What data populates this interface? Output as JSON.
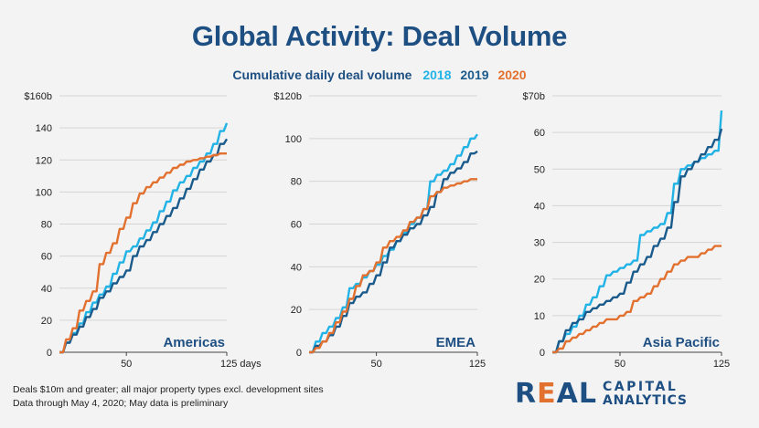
{
  "title": "Global Activity: Deal Volume",
  "subtitle": {
    "text": "Cumulative daily deal volume",
    "legend": [
      {
        "label": "2018",
        "color": "#22b3e6"
      },
      {
        "label": "2019",
        "color": "#1a5b8c"
      },
      {
        "label": "2020",
        "color": "#e2702e"
      }
    ]
  },
  "footnote": {
    "line1": "Deals $10m and greater; all major property types excl. development sites",
    "line2": "Data through May 4, 2020; May data is preliminary"
  },
  "logo": {
    "word_prefix": "R",
    "word_highlight": "E",
    "word_suffix": "AL",
    "line1": "CAPITAL",
    "line2": "ANALYTICS"
  },
  "chart_data": [
    {
      "type": "line",
      "region": "Americas",
      "xlabel": "days",
      "xlim": [
        0,
        125
      ],
      "xticks": [
        50,
        125
      ],
      "xtick_labels": [
        "50",
        "125 days"
      ],
      "ylim": [
        0,
        160
      ],
      "yticks": [
        0,
        20,
        40,
        60,
        80,
        100,
        120,
        140,
        160
      ],
      "ytick_labels": [
        "0",
        "20",
        "40",
        "60",
        "80",
        "100",
        "120",
        "140",
        "$160b"
      ],
      "series": [
        {
          "name": "2018",
          "color": "#22b3e6",
          "x": [
            0,
            5,
            10,
            15,
            20,
            25,
            30,
            35,
            40,
            45,
            50,
            55,
            60,
            65,
            70,
            75,
            80,
            85,
            90,
            95,
            100,
            105,
            110,
            115,
            120,
            125
          ],
          "y": [
            0,
            6,
            12,
            18,
            25,
            31,
            36,
            41,
            49,
            56,
            63,
            66,
            71,
            76,
            81,
            88,
            94,
            101,
            106,
            110,
            115,
            119,
            124,
            130,
            138,
            143
          ]
        },
        {
          "name": "2019",
          "color": "#1a5b8c",
          "x": [
            0,
            5,
            10,
            15,
            20,
            25,
            30,
            35,
            40,
            45,
            50,
            55,
            60,
            65,
            70,
            75,
            80,
            85,
            90,
            95,
            100,
            105,
            110,
            115,
            120,
            125
          ],
          "y": [
            0,
            6,
            11,
            16,
            22,
            27,
            34,
            38,
            43,
            47,
            51,
            60,
            66,
            70,
            75,
            80,
            85,
            90,
            96,
            102,
            108,
            114,
            119,
            123,
            130,
            133
          ]
        },
        {
          "name": "2020",
          "color": "#e2702e",
          "x": [
            0,
            5,
            10,
            15,
            20,
            25,
            30,
            35,
            40,
            45,
            50,
            55,
            60,
            65,
            70,
            75,
            80,
            85,
            90,
            95,
            100,
            105,
            110,
            115,
            120,
            125
          ],
          "y": [
            0,
            8,
            15,
            26,
            32,
            38,
            55,
            62,
            68,
            77,
            84,
            93,
            99,
            103,
            106,
            109,
            112,
            115,
            117,
            119,
            120,
            121,
            122,
            123,
            124,
            124
          ]
        }
      ]
    },
    {
      "type": "line",
      "region": "EMEA",
      "xlabel": "",
      "xlim": [
        0,
        125
      ],
      "xticks": [
        50,
        125
      ],
      "xtick_labels": [
        "50",
        "125"
      ],
      "ylim": [
        0,
        120
      ],
      "yticks": [
        0,
        20,
        40,
        60,
        80,
        100,
        120
      ],
      "ytick_labels": [
        "0",
        "20",
        "40",
        "60",
        "80",
        "100",
        "$120b"
      ],
      "series": [
        {
          "name": "2018",
          "color": "#22b3e6",
          "x": [
            0,
            5,
            10,
            15,
            20,
            25,
            30,
            35,
            40,
            45,
            50,
            55,
            60,
            65,
            70,
            75,
            80,
            85,
            90,
            95,
            100,
            105,
            110,
            115,
            120,
            125
          ],
          "y": [
            0,
            5,
            9,
            12,
            16,
            21,
            30,
            32,
            35,
            38,
            41,
            45,
            48,
            52,
            56,
            60,
            63,
            67,
            80,
            83,
            85,
            88,
            92,
            96,
            100,
            102
          ]
        },
        {
          "name": "2019",
          "color": "#1a5b8c",
          "x": [
            0,
            5,
            10,
            15,
            20,
            25,
            30,
            35,
            40,
            45,
            50,
            55,
            60,
            65,
            70,
            75,
            80,
            85,
            90,
            95,
            100,
            105,
            110,
            115,
            120,
            125
          ],
          "y": [
            0,
            3,
            5,
            8,
            12,
            17,
            23,
            26,
            28,
            32,
            36,
            42,
            49,
            52,
            55,
            58,
            60,
            64,
            68,
            75,
            81,
            84,
            86,
            89,
            93,
            94
          ]
        },
        {
          "name": "2020",
          "color": "#e2702e",
          "x": [
            0,
            5,
            10,
            15,
            20,
            25,
            30,
            35,
            40,
            45,
            50,
            55,
            60,
            65,
            70,
            75,
            80,
            85,
            90,
            95,
            100,
            105,
            110,
            115,
            120,
            125
          ],
          "y": [
            0,
            2,
            5,
            9,
            14,
            19,
            25,
            31,
            36,
            38,
            42,
            49,
            52,
            54,
            57,
            61,
            63,
            67,
            73,
            75,
            77,
            78,
            79,
            80,
            81,
            81
          ]
        }
      ]
    },
    {
      "type": "line",
      "region": "Asia Pacific",
      "xlabel": "",
      "xlim": [
        0,
        125
      ],
      "xticks": [
        50,
        125
      ],
      "xtick_labels": [
        "50",
        "125"
      ],
      "ylim": [
        0,
        70
      ],
      "yticks": [
        0,
        10,
        20,
        30,
        40,
        50,
        60,
        70
      ],
      "ytick_labels": [
        "0",
        "10",
        "20",
        "30",
        "40",
        "50",
        "60",
        "$70b"
      ],
      "series": [
        {
          "name": "2018",
          "color": "#22b3e6",
          "x": [
            0,
            5,
            10,
            15,
            20,
            25,
            30,
            35,
            40,
            45,
            50,
            55,
            60,
            65,
            70,
            75,
            80,
            85,
            90,
            95,
            100,
            105,
            110,
            115,
            120,
            125
          ],
          "y": [
            0,
            3,
            5,
            7,
            10,
            13,
            15,
            18,
            21,
            22,
            23,
            24,
            25,
            32,
            33,
            34,
            35,
            38,
            46,
            50,
            51,
            52,
            53,
            54,
            55,
            66
          ]
        },
        {
          "name": "2019",
          "color": "#1a5b8c",
          "x": [
            0,
            5,
            10,
            15,
            20,
            25,
            30,
            35,
            40,
            45,
            50,
            55,
            60,
            65,
            70,
            75,
            80,
            85,
            90,
            95,
            100,
            105,
            110,
            115,
            120,
            125
          ],
          "y": [
            0,
            3,
            6,
            8,
            9,
            11,
            12,
            13,
            14,
            15,
            16,
            19,
            22,
            24,
            26,
            29,
            31,
            34,
            41,
            48,
            50,
            52,
            54,
            56,
            58,
            61
          ]
        },
        {
          "name": "2020",
          "color": "#e2702e",
          "x": [
            0,
            5,
            10,
            15,
            20,
            25,
            30,
            35,
            40,
            45,
            50,
            55,
            60,
            65,
            70,
            75,
            80,
            85,
            90,
            95,
            100,
            105,
            110,
            115,
            120,
            125
          ],
          "y": [
            0,
            1,
            3,
            4,
            5,
            6,
            7,
            8,
            9,
            9,
            10,
            11,
            14,
            15,
            16,
            18,
            20,
            22,
            24,
            25,
            26,
            26,
            27,
            28,
            29,
            29
          ]
        }
      ]
    }
  ]
}
